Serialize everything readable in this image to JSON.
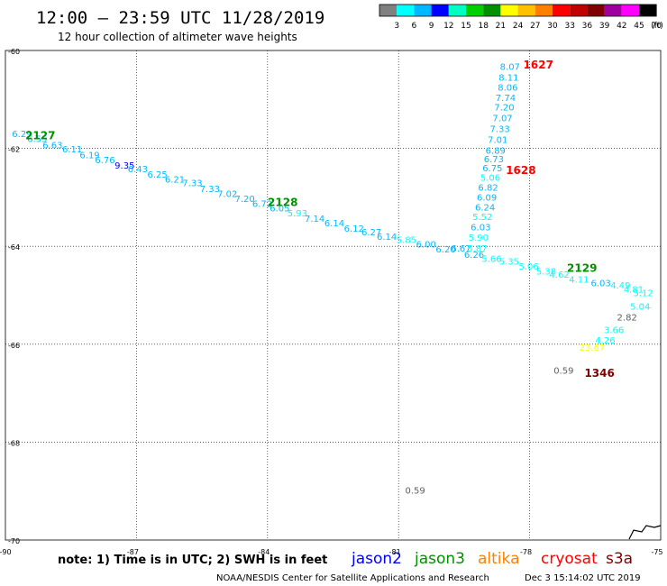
{
  "title": "12:00 – 23:59 UTC 11/28/2019",
  "subtitle": "12 hour collection of altimeter wave heights",
  "note": "note:  1) Time is in UTC;  2) SWH is in feet",
  "credit": "NOAA/NESDIS Center for Satellite Applications and Research",
  "timestamp": "Dec  3 15:14:02 UTC 2019",
  "colorbar": {
    "ticks": [
      "3",
      "6",
      "9",
      "12",
      "15",
      "18",
      "21",
      "24",
      "27",
      "30",
      "33",
      "36",
      "39",
      "42",
      "45",
      "70"
    ],
    "unit": "(ft)",
    "colors": [
      "#808080",
      "#00ffff",
      "#00b8ff",
      "#0000ff",
      "#00ffc0",
      "#00d000",
      "#009000",
      "#ffff00",
      "#ffc000",
      "#ff8000",
      "#ff0000",
      "#c00000",
      "#800000",
      "#a000a0",
      "#ff00ff",
      "#000000"
    ]
  },
  "legend": [
    {
      "name": "jason2",
      "color": "#0000ff"
    },
    {
      "name": "jason3",
      "color": "#009000"
    },
    {
      "name": "altika",
      "color": "#ff8000"
    },
    {
      "name": "cryosat",
      "color": "#ff0000"
    },
    {
      "name": "s3a",
      "color": "#800000"
    }
  ],
  "chart_data": {
    "type": "scatter",
    "xlabel": "",
    "ylabel": "",
    "xlim": [
      -90,
      -75
    ],
    "ylim": [
      -70,
      -60
    ],
    "x_ticks": [
      "-90",
      "-87",
      "-84",
      "-81",
      "-78",
      "-75"
    ],
    "y_ticks": [
      "-60",
      "-62",
      "-64",
      "-66",
      "-68",
      "-70"
    ],
    "grid": true,
    "series": [
      {
        "name": "jason3",
        "color": "#009000",
        "points": [
          {
            "x": -89.62,
            "y": -61.71,
            "v": "6.29"
          },
          {
            "x": -89.27,
            "y": -61.81,
            "v": "6.55"
          },
          {
            "x": -88.92,
            "y": -61.94,
            "v": "6.63"
          },
          {
            "x": -88.47,
            "y": -62.03,
            "v": "6.11"
          },
          {
            "x": -88.07,
            "y": -62.15,
            "v": "6.19"
          },
          {
            "x": -87.72,
            "y": -62.25,
            "v": "6.76"
          },
          {
            "x": -87.27,
            "y": -62.36,
            "v": "9.35",
            "c": "#0000ff"
          },
          {
            "x": -86.97,
            "y": -62.43,
            "v": "6.43"
          },
          {
            "x": -86.52,
            "y": -62.54,
            "v": "6.25"
          },
          {
            "x": -86.12,
            "y": -62.64,
            "v": "6.21"
          },
          {
            "x": -85.72,
            "y": -62.72,
            "v": "7.33"
          },
          {
            "x": -85.32,
            "y": -62.84,
            "v": "7.33"
          },
          {
            "x": -84.92,
            "y": -62.94,
            "v": "7.02"
          },
          {
            "x": -84.52,
            "y": -63.04,
            "v": "7.20"
          },
          {
            "x": -84.12,
            "y": -63.14,
            "v": "6.72"
          },
          {
            "x": -83.72,
            "y": -63.23,
            "v": "6.05"
          },
          {
            "x": -83.32,
            "y": -63.33,
            "v": "5.93"
          },
          {
            "x": -82.92,
            "y": -63.44,
            "v": "7.14"
          },
          {
            "x": -82.47,
            "y": -63.54,
            "v": "6.14"
          },
          {
            "x": -82.02,
            "y": -63.65,
            "v": "6.12"
          },
          {
            "x": -81.62,
            "y": -63.72,
            "v": "6.27"
          },
          {
            "x": -81.27,
            "y": -63.81,
            "v": "6.14"
          },
          {
            "x": -80.82,
            "y": -63.88,
            "v": "5.85"
          },
          {
            "x": -80.37,
            "y": -63.97,
            "v": "6.00"
          },
          {
            "x": -79.92,
            "y": -64.07,
            "v": "6.20"
          },
          {
            "x": -79.57,
            "y": -64.05,
            "v": "6.67"
          },
          {
            "x": -79.27,
            "y": -64.18,
            "v": "6.26"
          },
          {
            "x": -78.87,
            "y": -64.26,
            "v": "5.66"
          },
          {
            "x": -78.47,
            "y": -64.32,
            "v": "5.35"
          },
          {
            "x": -78.02,
            "y": -64.42,
            "v": "5.06"
          },
          {
            "x": -77.62,
            "y": -64.52,
            "v": "5.38"
          },
          {
            "x": -77.32,
            "y": -64.59,
            "v": "4.62"
          },
          {
            "x": -76.87,
            "y": -64.69,
            "v": "4.11"
          },
          {
            "x": -76.37,
            "y": -64.76,
            "v": "6.03"
          },
          {
            "x": -75.92,
            "y": -64.81,
            "v": "4.49"
          },
          {
            "x": -75.62,
            "y": -64.89,
            "v": "4.81"
          },
          {
            "x": -75.4,
            "y": -64.96,
            "v": "5.12"
          },
          {
            "x": -75.47,
            "y": -65.24,
            "v": "5.04"
          },
          {
            "x": -75.77,
            "y": -65.46,
            "v": "2.82",
            "c": "#606060"
          },
          {
            "x": -76.07,
            "y": -65.72,
            "v": "3.66"
          },
          {
            "x": -76.27,
            "y": -65.93,
            "v": "4.26"
          },
          {
            "x": -76.57,
            "y": -66.08,
            "v": "23.67",
            "c": "#ffff00"
          }
        ]
      },
      {
        "name": "cryosat",
        "color": "#ff0000",
        "points": [
          {
            "x": -79.2,
            "y": -64.05,
            "v": "5.87"
          },
          {
            "x": -79.17,
            "y": -63.83,
            "v": "5.90"
          },
          {
            "x": -79.12,
            "y": -63.62,
            "v": "6.03"
          },
          {
            "x": -79.08,
            "y": -63.41,
            "v": "5.52"
          },
          {
            "x": -79.02,
            "y": -63.21,
            "v": "6.24"
          },
          {
            "x": -78.98,
            "y": -63.01,
            "v": "6.09"
          },
          {
            "x": -78.95,
            "y": -62.81,
            "v": "6.82"
          },
          {
            "x": -78.9,
            "y": -62.61,
            "v": "5.06"
          },
          {
            "x": -78.85,
            "y": -62.41,
            "v": "6.75"
          },
          {
            "x": -78.82,
            "y": -62.23,
            "v": "6.73"
          },
          {
            "x": -78.78,
            "y": -62.05,
            "v": "6.89"
          },
          {
            "x": -78.73,
            "y": -61.83,
            "v": "7.01"
          },
          {
            "x": -78.68,
            "y": -61.61,
            "v": "7.33"
          },
          {
            "x": -78.62,
            "y": -61.39,
            "v": "7.07"
          },
          {
            "x": -78.58,
            "y": -61.17,
            "v": "7.20"
          },
          {
            "x": -78.55,
            "y": -60.98,
            "v": "7.74"
          },
          {
            "x": -78.5,
            "y": -60.76,
            "v": "8.06"
          },
          {
            "x": -78.48,
            "y": -60.56,
            "v": "8.11"
          },
          {
            "x": -78.45,
            "y": -60.34,
            "v": "8.07"
          }
        ]
      },
      {
        "name": "s3a",
        "color": "#800000",
        "points": [
          {
            "x": -77.22,
            "y": -66.55,
            "v": "0.59",
            "c": "#606060"
          },
          {
            "x": -80.62,
            "y": -69.0,
            "v": "0.59",
            "c": "#606060"
          }
        ]
      }
    ],
    "pass_labels": [
      {
        "text": "2127",
        "x": -89.2,
        "y": -61.75,
        "color": "#009000"
      },
      {
        "text": "2128",
        "x": -83.65,
        "y": -63.11,
        "color": "#009000"
      },
      {
        "text": "2129",
        "x": -76.8,
        "y": -64.46,
        "color": "#009000"
      },
      {
        "text": "1627",
        "x": -77.8,
        "y": -60.3,
        "color": "#ff0000"
      },
      {
        "text": "1628",
        "x": -78.2,
        "y": -62.46,
        "color": "#ff0000"
      },
      {
        "text": "1346",
        "x": -76.4,
        "y": -66.6,
        "color": "#800000"
      }
    ]
  }
}
